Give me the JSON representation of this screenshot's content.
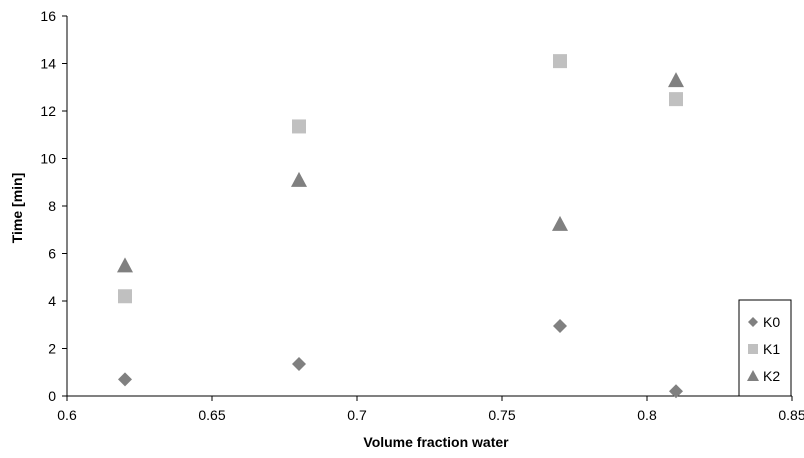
{
  "chart_data": {
    "type": "scatter",
    "title": "",
    "xlabel": "Volume fraction water",
    "ylabel": "Time [min]",
    "xlim": [
      0.6,
      0.85
    ],
    "ylim": [
      0,
      16
    ],
    "xticks": [
      "0.6",
      "0.65",
      "0.7",
      "0.75",
      "0.8",
      "0.85"
    ],
    "yticks": [
      "0",
      "2",
      "4",
      "6",
      "8",
      "10",
      "12",
      "14",
      "16"
    ],
    "grid": false,
    "legend_position": "bottom-right",
    "series": [
      {
        "name": "K0",
        "marker": "diamond",
        "color": "#808080",
        "points": [
          [
            0.62,
            0.7
          ],
          [
            0.68,
            1.35
          ],
          [
            0.77,
            2.95
          ],
          [
            0.81,
            0.2
          ]
        ]
      },
      {
        "name": "K1",
        "marker": "square",
        "color": "#c0c0c0",
        "points": [
          [
            0.62,
            4.2
          ],
          [
            0.68,
            11.35
          ],
          [
            0.77,
            14.1
          ],
          [
            0.81,
            12.5
          ]
        ]
      },
      {
        "name": "K2",
        "marker": "triangle",
        "color": "#808080",
        "points": [
          [
            0.62,
            5.5
          ],
          [
            0.68,
            9.1
          ],
          [
            0.77,
            7.25
          ],
          [
            0.81,
            13.3
          ]
        ]
      }
    ]
  }
}
